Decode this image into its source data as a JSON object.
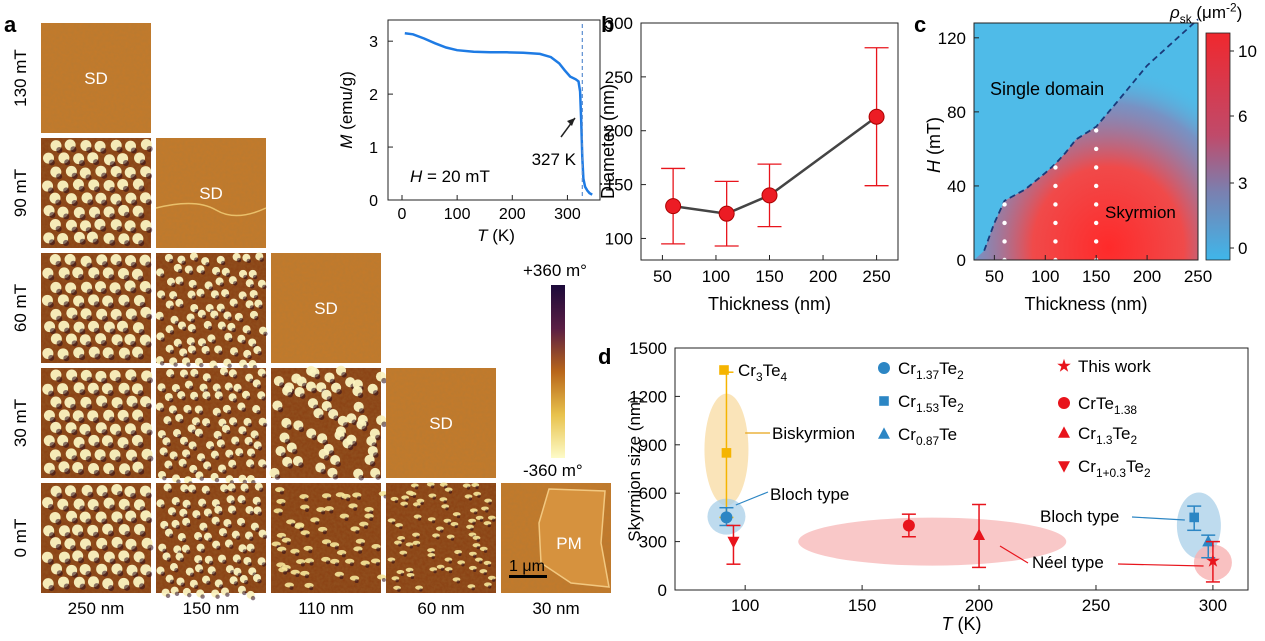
{
  "panel_labels": {
    "a": "a",
    "b": "b",
    "c": "c",
    "d": "d"
  },
  "panel_a": {
    "field_labels": [
      "130 mT",
      "90 mT",
      "60 mT",
      "30 mT",
      "0 mT"
    ],
    "thickness_labels": [
      "250 nm",
      "150 nm",
      "110 nm",
      "60 nm",
      "30 nm"
    ],
    "sd_label": "SD",
    "pm_label": "PM",
    "scale_bar_label": "1 μm",
    "colorbar_max": "+360 m°",
    "colorbar_min": "-360 m°",
    "phase_colors": [
      "#2a0a4a",
      "#6a2a16",
      "#b8661a",
      "#e6b44c",
      "#fdfbc2"
    ]
  },
  "chart_data": [
    {
      "id": "inset-MT",
      "type": "line",
      "xlabel_italic": "T",
      "xlabel_unit": " (K)",
      "ylabel_italic": "M",
      "ylabel_unit": " (emu/g)",
      "annotation_H": "H",
      "annotation_H_rest": " = 20 mT",
      "tc_label": "327 K",
      "tc_value": 327,
      "xlim": [
        -20,
        360
      ],
      "ylim": [
        0,
        3.4
      ],
      "x_ticks": [
        0,
        100,
        200,
        300
      ],
      "y_ticks": [
        0,
        1,
        2,
        3
      ],
      "color": "#1e7be4",
      "series": [
        {
          "name": "M(T)",
          "x": [
            5,
            20,
            40,
            60,
            80,
            100,
            130,
            160,
            190,
            220,
            250,
            270,
            285,
            295,
            305,
            315,
            320,
            323,
            325,
            327,
            329,
            332,
            336,
            340,
            345
          ],
          "y": [
            3.15,
            3.13,
            3.05,
            2.96,
            2.88,
            2.83,
            2.8,
            2.79,
            2.79,
            2.78,
            2.76,
            2.7,
            2.58,
            2.45,
            2.33,
            2.28,
            2.24,
            2.05,
            1.5,
            0.8,
            0.4,
            0.25,
            0.18,
            0.13,
            0.1
          ]
        }
      ]
    },
    {
      "id": "panel-b",
      "type": "scatter",
      "xlabel": "Thickness (nm)",
      "ylabel": "Diameter (nm)",
      "xlim": [
        30,
        270
      ],
      "ylim": [
        80,
        300
      ],
      "x_ticks": [
        50,
        100,
        150,
        200,
        250
      ],
      "y_ticks": [
        100,
        150,
        200,
        250,
        300
      ],
      "series": [
        {
          "name": "Diameter",
          "x": [
            60,
            110,
            150,
            250
          ],
          "y": [
            130,
            123,
            140,
            213
          ],
          "err": [
            35,
            30,
            29,
            64
          ]
        }
      ]
    },
    {
      "id": "panel-c",
      "type": "heatmap",
      "xlabel": "Thickness (nm)",
      "ylabel_italic": "H",
      "ylabel_unit": " (mT)",
      "xlim": [
        30,
        250
      ],
      "ylim": [
        0,
        128
      ],
      "x_ticks": [
        50,
        100,
        150,
        200,
        250
      ],
      "y_ticks": [
        0,
        40,
        80,
        120
      ],
      "label_single_domain": "Single domain",
      "label_skyrmion": "Skyrmion",
      "boundary": {
        "x": [
          40,
          50,
          60,
          80,
          100,
          110,
          120,
          130,
          150,
          170,
          200,
          240,
          250
        ],
        "y": [
          5,
          20,
          32,
          38,
          47,
          52,
          58,
          65,
          72,
          85,
          105,
          125,
          130
        ]
      },
      "dot_columns": [
        {
          "x": 60,
          "y_max": 30
        },
        {
          "x": 110,
          "y_max": 50
        },
        {
          "x": 150,
          "y_max": 70
        }
      ],
      "colorbar": {
        "label_rho": "ρ",
        "label_sub": "sk",
        "label_unit": " (μm",
        "label_exp": "-2",
        "label_close": ")",
        "ticks": [
          "10",
          "6",
          "3",
          "0"
        ],
        "color_high": "#f0282e",
        "color_low": "#3fb6ea"
      }
    },
    {
      "id": "panel-d",
      "type": "scatter",
      "xlabel_italic": "T",
      "xlabel_unit": " (K)",
      "ylabel": "Skyrmion size (nm)",
      "xlim": [
        70,
        315
      ],
      "ylim": [
        0,
        1500
      ],
      "x_ticks": [
        100,
        150,
        200,
        250,
        300
      ],
      "y_ticks": [
        0,
        300,
        600,
        900,
        1200,
        1500
      ],
      "series": [
        {
          "name": "Cr3Te4",
          "marker": "square",
          "color": "#f5b400",
          "points": [
            {
              "x": 92,
              "y": 850,
              "lo": 450,
              "hi": 1350
            }
          ]
        },
        {
          "name": "Cr1.37Te2",
          "marker": "circle",
          "color": "#2c86c4",
          "points": [
            {
              "x": 92,
              "y": 450,
              "lo": 400,
              "hi": 510
            }
          ]
        },
        {
          "name": "Cr1.53Te2",
          "marker": "square",
          "color": "#2c86c4",
          "points": [
            {
              "x": 292,
              "y": 450,
              "lo": 370,
              "hi": 520
            }
          ]
        },
        {
          "name": "Cr0.87Te",
          "marker": "triangle",
          "color": "#2c86c4",
          "points": [
            {
              "x": 298,
              "y": 300,
              "lo": 200,
              "hi": 340
            }
          ]
        },
        {
          "name": "This work",
          "marker": "star",
          "color": "#e8141c",
          "points": [
            {
              "x": 300,
              "y": 180,
              "lo": 50,
              "hi": 300
            }
          ]
        },
        {
          "name": "CrTe1.38",
          "marker": "circle",
          "color": "#e8141c",
          "points": [
            {
              "x": 170,
              "y": 400,
              "lo": 330,
              "hi": 470
            }
          ]
        },
        {
          "name": "Cr1.3Te2",
          "marker": "triangle",
          "color": "#e8141c",
          "points": [
            {
              "x": 200,
              "y": 340,
              "lo": 140,
              "hi": 530
            }
          ]
        },
        {
          "name": "Cr1+0.3Te2",
          "marker": "triangle-down",
          "color": "#e8141c",
          "points": [
            {
              "x": 95,
              "y": 300,
              "lo": 160,
              "hi": 400
            }
          ]
        }
      ],
      "legend": [
        {
          "base": "Cr",
          "s1": "3",
          "mid": "Te",
          "s2": "4"
        },
        {
          "base": "Cr",
          "s1": "1.37",
          "mid": "Te",
          "s2": "2"
        },
        {
          "base": "Cr",
          "s1": "1.53",
          "mid": "Te",
          "s2": "2"
        },
        {
          "base": "Cr",
          "s1": "0.87",
          "mid": "Te",
          "s2": ""
        },
        {
          "base": "This work",
          "s1": "",
          "mid": "",
          "s2": ""
        },
        {
          "base": "CrTe",
          "s1": "1.38",
          "mid": "",
          "s2": ""
        },
        {
          "base": "Cr",
          "s1": "1.3",
          "mid": "Te",
          "s2": "2"
        },
        {
          "base": "Cr",
          "s1": "1+0.3",
          "mid": "Te",
          "s2": "2"
        }
      ],
      "annotations": {
        "biskyrmion": "Biskyrmion",
        "bloch_left": "Bloch type",
        "bloch_right": "Bloch type",
        "neel": "Néel type"
      }
    }
  ]
}
